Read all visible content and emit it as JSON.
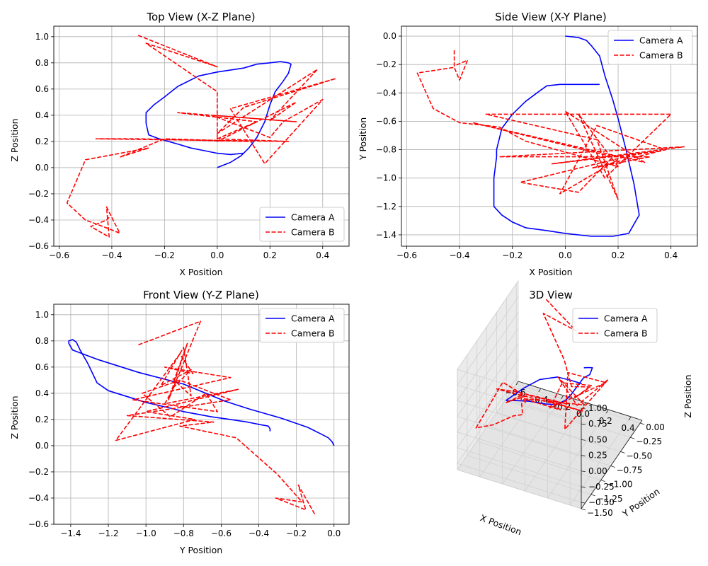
{
  "colors": {
    "camera_a": "#0000ff",
    "camera_b": "#ff0000",
    "grid": "#b0b0b0"
  },
  "chart_data": [
    {
      "type": "line",
      "title": "Top View (X-Z Plane)",
      "xlabel": "X Position",
      "ylabel": "Z Position",
      "xlim": [
        -0.62,
        0.5
      ],
      "ylim": [
        -0.6,
        1.08
      ],
      "xticks": [
        -0.6,
        -0.4,
        -0.2,
        0.0,
        0.2,
        0.4
      ],
      "yticks": [
        -0.6,
        -0.4,
        -0.2,
        0.0,
        0.2,
        0.4,
        0.6,
        0.8,
        1.0
      ],
      "legend": "lower-right",
      "series": [
        {
          "name": "Camera A",
          "style": "solid",
          "x": [
            0.0,
            0.05,
            0.09,
            0.12,
            0.15,
            0.18,
            0.2,
            0.22,
            0.25,
            0.27,
            0.28,
            0.27,
            0.24,
            0.2,
            0.15,
            0.1,
            0.0,
            -0.07,
            -0.15,
            -0.2,
            -0.24,
            -0.27,
            -0.27,
            -0.26,
            -0.22,
            -0.15,
            -0.1,
            -0.05,
            0.0,
            0.05,
            0.1
          ],
          "y": [
            0.0,
            0.04,
            0.09,
            0.15,
            0.23,
            0.35,
            0.48,
            0.58,
            0.66,
            0.72,
            0.79,
            0.8,
            0.81,
            0.8,
            0.79,
            0.76,
            0.73,
            0.7,
            0.62,
            0.54,
            0.48,
            0.42,
            0.34,
            0.25,
            0.22,
            0.18,
            0.15,
            0.13,
            0.11,
            0.1,
            0.11
          ]
        },
        {
          "name": "Camera B",
          "style": "dashed",
          "x": [
            -0.3,
            0.0,
            -0.27,
            0.0,
            0.0,
            0.1,
            0.3,
            0.2,
            0.38,
            0.0,
            0.1,
            0.45,
            0.05,
            0.18,
            0.4,
            0.25,
            0.2,
            -0.02,
            0.3,
            -0.15,
            0.15,
            0.0,
            0.27,
            -0.46,
            -0.3,
            0.12,
            -0.2,
            -0.37,
            -0.26,
            -0.5,
            -0.57,
            -0.5,
            -0.42,
            -0.37,
            -0.42,
            -0.41,
            -0.48,
            -0.42,
            -0.41
          ],
          "y": [
            1.01,
            0.77,
            0.95,
            0.58,
            0.2,
            0.3,
            0.5,
            0.36,
            0.75,
            0.26,
            0.46,
            0.68,
            0.45,
            0.03,
            0.52,
            0.35,
            0.23,
            0.4,
            0.35,
            0.42,
            0.35,
            0.22,
            0.2,
            0.22,
            0.22,
            0.2,
            0.22,
            0.08,
            0.15,
            0.06,
            -0.27,
            -0.4,
            -0.46,
            -0.5,
            -0.3,
            -0.53,
            -0.45,
            -0.4,
            -0.38
          ]
        }
      ]
    },
    {
      "type": "line",
      "title": "Side View (X-Y Plane)",
      "xlabel": "X Position",
      "ylabel": "Y Position",
      "xlim": [
        -0.62,
        0.5
      ],
      "ylim": [
        -1.48,
        0.07
      ],
      "xticks": [
        -0.6,
        -0.4,
        -0.2,
        0.0,
        0.2,
        0.4
      ],
      "yticks": [
        -1.4,
        -1.2,
        -1.0,
        -0.8,
        -0.6,
        -0.4,
        -0.2,
        0.0
      ],
      "legend": "upper-right",
      "series": [
        {
          "name": "Camera A",
          "style": "solid",
          "x": [
            0.0,
            0.05,
            0.08,
            0.1,
            0.13,
            0.15,
            0.18,
            0.2,
            0.23,
            0.26,
            0.28,
            0.24,
            0.18,
            0.1,
            0.0,
            -0.07,
            -0.15,
            -0.2,
            -0.24,
            -0.27,
            -0.27,
            -0.26,
            -0.26,
            -0.24,
            -0.2,
            -0.15,
            -0.1,
            -0.07,
            -0.02,
            0.02,
            0.08,
            0.13
          ],
          "y": [
            0.0,
            -0.01,
            -0.03,
            -0.07,
            -0.14,
            -0.28,
            -0.45,
            -0.58,
            -0.8,
            -1.04,
            -1.26,
            -1.39,
            -1.41,
            -1.41,
            -1.39,
            -1.37,
            -1.35,
            -1.31,
            -1.26,
            -1.2,
            -1.0,
            -0.85,
            -0.8,
            -0.65,
            -0.55,
            -0.46,
            -0.39,
            -0.35,
            -0.34,
            -0.34,
            -0.34,
            -0.34
          ]
        },
        {
          "name": "Camera B",
          "style": "dashed",
          "x": [
            -0.42,
            -0.42,
            -0.37,
            -0.4,
            -0.42,
            -0.56,
            -0.5,
            -0.4,
            -0.25,
            -0.15,
            0.2,
            0.05,
            0.2,
            0.12,
            -0.3,
            0.4,
            0.15,
            0.0,
            0.3,
            -0.35,
            0.18,
            0.05,
            -0.17,
            0.25,
            0.35,
            -0.05,
            0.15,
            0.45,
            -0.25,
            0.32,
            0.1,
            0.38,
            0.12,
            -0.02,
            0.2
          ],
          "y": [
            -0.1,
            -0.21,
            -0.17,
            -0.31,
            -0.22,
            -0.26,
            -0.51,
            -0.61,
            -0.64,
            -0.74,
            -0.92,
            -0.55,
            -1.15,
            -0.73,
            -0.55,
            -0.55,
            -1.0,
            -0.53,
            -0.89,
            -0.61,
            -0.85,
            -1.1,
            -1.03,
            -0.84,
            -0.81,
            -0.9,
            -0.85,
            -0.78,
            -0.85,
            -0.85,
            -0.93,
            -0.8,
            -0.63,
            -1.11,
            -0.87
          ]
        }
      ]
    },
    {
      "type": "line",
      "title": "Front View (Y-Z Plane)",
      "xlabel": "Y Position",
      "ylabel": "Z Position",
      "xlim": [
        -1.49,
        0.08
      ],
      "ylim": [
        -0.6,
        1.08
      ],
      "xticks": [
        -1.4,
        -1.2,
        -1.0,
        -0.8,
        -0.6,
        -0.4,
        -0.2,
        0.0
      ],
      "yticks": [
        -0.6,
        -0.4,
        -0.2,
        0.0,
        0.2,
        0.4,
        0.6,
        0.8,
        1.0
      ],
      "legend": "upper-right",
      "series": [
        {
          "name": "Camera A",
          "style": "solid",
          "x": [
            0.0,
            -0.01,
            -0.03,
            -0.07,
            -0.14,
            -0.28,
            -0.45,
            -0.58,
            -0.8,
            -1.04,
            -1.26,
            -1.39,
            -1.41,
            -1.41,
            -1.39,
            -1.37,
            -1.35,
            -1.31,
            -1.26,
            -1.2,
            -1.0,
            -0.85,
            -0.8,
            -0.65,
            -0.55,
            -0.46,
            -0.39,
            -0.35,
            -0.34,
            -0.34
          ],
          "y": [
            0.0,
            0.03,
            0.06,
            0.09,
            0.14,
            0.21,
            0.28,
            0.34,
            0.47,
            0.56,
            0.66,
            0.73,
            0.78,
            0.8,
            0.81,
            0.79,
            0.73,
            0.63,
            0.48,
            0.42,
            0.33,
            0.28,
            0.26,
            0.22,
            0.2,
            0.18,
            0.16,
            0.15,
            0.13,
            0.11
          ]
        },
        {
          "name": "Camera B",
          "style": "dashed",
          "x": [
            -1.04,
            -0.71,
            -0.88,
            -0.78,
            -0.85,
            -0.76,
            -0.8,
            -0.92,
            -0.76,
            -0.85,
            -0.9,
            -0.51,
            -1.0,
            -0.74,
            -1.16,
            -0.82,
            -0.75,
            -0.9,
            -0.55,
            -1.07,
            -0.62,
            -0.68,
            -0.87,
            -1.02,
            -0.82,
            -0.55,
            -1.1,
            -0.64,
            -0.82,
            -0.52,
            -0.3,
            -0.17,
            -0.31,
            -0.15,
            -0.19,
            -0.1
          ],
          "y": [
            0.77,
            0.95,
            0.35,
            0.78,
            0.5,
            0.38,
            0.75,
            0.46,
            0.58,
            0.45,
            0.32,
            0.43,
            0.26,
            0.2,
            0.04,
            0.7,
            0.55,
            0.6,
            0.52,
            0.35,
            0.26,
            0.4,
            0.22,
            0.4,
            0.5,
            0.35,
            0.23,
            0.18,
            0.15,
            0.06,
            -0.22,
            -0.43,
            -0.4,
            -0.49,
            -0.3,
            -0.53
          ]
        }
      ]
    },
    {
      "type": "line",
      "subtype": "3d",
      "title": "3D View",
      "xlabel": "X Position",
      "ylabel": "Y Position",
      "zlabel": "Z Position",
      "xlim": [
        -0.6,
        0.5
      ],
      "ylim": [
        -1.5,
        0.05
      ],
      "zlim": [
        -0.6,
        1.0
      ],
      "xticks": [
        -0.6,
        -0.4,
        -0.2,
        0.0,
        0.2,
        0.4
      ],
      "yticks": [
        -1.5,
        -1.25,
        -1.0,
        -0.75,
        -0.5,
        -0.25,
        0.0
      ],
      "zticks": [
        -0.5,
        -0.25,
        0.0,
        0.25,
        0.5,
        0.75,
        1.0
      ],
      "xtick_labels": [
        "−0.6",
        "−0.4",
        "−0.2",
        "0.0",
        "0.2",
        "0.4"
      ],
      "ytick_labels": [
        "−1.50",
        "−1.25",
        "−1.00",
        "−0.75",
        "−0.50",
        "−0.25",
        "0.00"
      ],
      "ztick_labels": [
        "−0.50",
        "−0.25",
        "0.00",
        "0.25",
        "0.50",
        "0.75",
        "1.00"
      ],
      "legend": "upper-right",
      "series": [
        {
          "name": "Camera A",
          "style": "solid",
          "x": [
            0.0,
            0.05,
            0.1,
            0.15,
            0.2,
            0.25,
            0.28,
            0.24,
            0.15,
            0.0,
            -0.15,
            -0.24,
            -0.27,
            -0.26,
            -0.2,
            -0.1,
            0.0,
            0.1
          ],
          "y": [
            0.0,
            -0.01,
            -0.07,
            -0.28,
            -0.58,
            -1.04,
            -1.26,
            -1.39,
            -1.41,
            -1.39,
            -1.35,
            -1.26,
            -1.2,
            -0.8,
            -0.55,
            -0.39,
            -0.34,
            -0.34
          ],
          "z": [
            0.0,
            0.04,
            0.12,
            0.23,
            0.48,
            0.66,
            0.79,
            0.81,
            0.79,
            0.73,
            0.62,
            0.48,
            0.42,
            0.25,
            0.2,
            0.15,
            0.11,
            0.11
          ]
        },
        {
          "name": "Camera B",
          "style": "dashed",
          "x": [
            -0.3,
            0.0,
            -0.27,
            0.0,
            0.1,
            0.3,
            0.2,
            0.38,
            0.0,
            0.1,
            0.45,
            0.05,
            0.18,
            0.4,
            0.25,
            -0.02,
            0.3,
            -0.15,
            0.15,
            0.0,
            0.27,
            -0.46,
            -0.3,
            0.12,
            -0.2,
            -0.37,
            -0.26,
            -0.5,
            -0.57,
            -0.5,
            -0.42,
            -0.37,
            -0.42,
            -0.41
          ],
          "y": [
            -0.1,
            -0.2,
            -0.26,
            -0.5,
            -0.6,
            -0.7,
            -0.8,
            -0.9,
            -0.55,
            -1.15,
            -0.73,
            -0.55,
            -1.0,
            -0.53,
            -0.89,
            -0.61,
            -0.85,
            -1.1,
            -1.03,
            -0.84,
            -0.81,
            -0.9,
            -0.85,
            -0.78,
            -0.85,
            -0.93,
            -0.8,
            -0.63,
            -1.11,
            -0.87,
            -0.6,
            -0.5,
            -0.4,
            -0.3
          ],
          "z": [
            1.01,
            0.77,
            0.95,
            0.58,
            0.3,
            0.5,
            0.36,
            0.75,
            0.26,
            0.46,
            0.68,
            0.45,
            0.03,
            0.52,
            0.35,
            0.4,
            0.35,
            0.42,
            0.35,
            0.22,
            0.2,
            0.22,
            0.22,
            0.2,
            0.22,
            0.08,
            0.15,
            0.06,
            -0.27,
            -0.4,
            -0.46,
            -0.5,
            -0.3,
            -0.53
          ]
        }
      ]
    }
  ]
}
